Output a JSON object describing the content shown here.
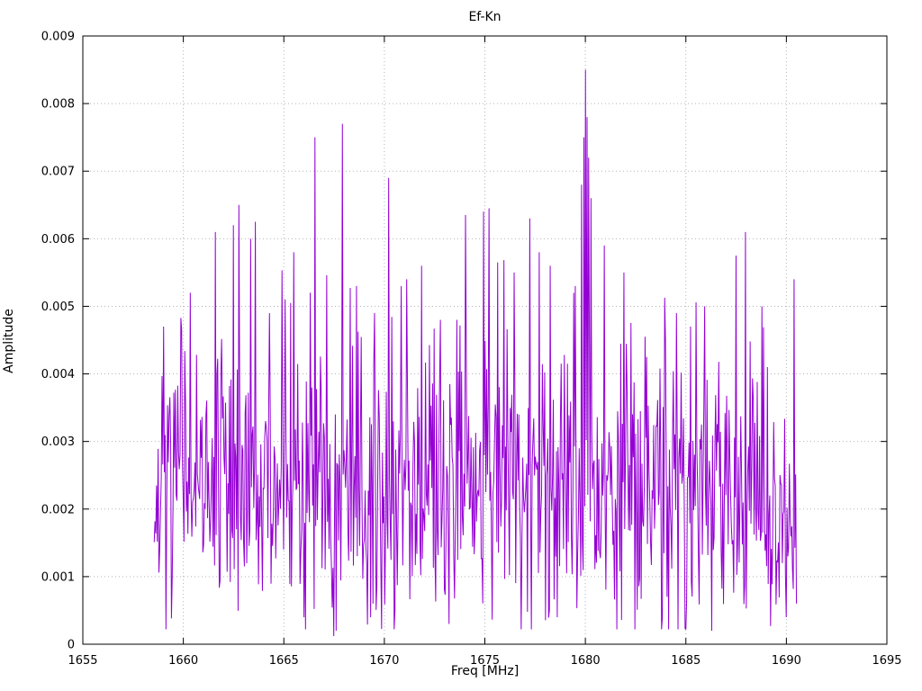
{
  "chart_data": {
    "type": "line",
    "title": "Ef-Kn",
    "xlabel": "Freq [MHz]",
    "ylabel": "Amplitude",
    "xlim": [
      1655,
      1695
    ],
    "ylim": [
      0,
      0.009
    ],
    "xticks": [
      1655,
      1660,
      1665,
      1670,
      1675,
      1680,
      1685,
      1690,
      1695
    ],
    "xtick_labels": [
      "1655",
      "1660",
      "1665",
      "1670",
      "1675",
      "1680",
      "1685",
      "1690",
      "1695"
    ],
    "yticks": [
      0,
      0.001,
      0.002,
      0.003,
      0.004,
      0.005,
      0.006,
      0.007,
      0.008,
      0.009
    ],
    "ytick_labels": [
      "0",
      "0.001",
      "0.002",
      "0.003",
      "0.004",
      "0.005",
      "0.006",
      "0.007",
      "0.008",
      "0.009"
    ],
    "grid": true,
    "grid_color": "#b4b4b4",
    "line_color": "#9400d3",
    "background": "#ffffff",
    "legend": "none",
    "series_x_range": [
      1658.55,
      1690.5
    ],
    "n_points": 820,
    "noise": {
      "base": 0.00235,
      "spread": 0.0011,
      "min": 0.00022,
      "spike_prob": 0.05,
      "spike_max": 0.0028,
      "seed": 7
    },
    "peaks": [
      [
        1659.0,
        0.0047
      ],
      [
        1659.9,
        0.00465
      ],
      [
        1660.35,
        0.0052
      ],
      [
        1661.6,
        0.0061
      ],
      [
        1662.5,
        0.0062
      ],
      [
        1662.75,
        0.0065
      ],
      [
        1663.35,
        0.006
      ],
      [
        1663.6,
        0.00625
      ],
      [
        1664.3,
        0.0049
      ],
      [
        1665.05,
        0.0051
      ],
      [
        1665.35,
        0.00505
      ],
      [
        1666.3,
        0.0052
      ],
      [
        1666.55,
        0.0075
      ],
      [
        1667.9,
        0.0077
      ],
      [
        1668.6,
        0.0053
      ],
      [
        1669.5,
        0.0049
      ],
      [
        1670.2,
        0.0069
      ],
      [
        1670.85,
        0.0053
      ],
      [
        1671.1,
        0.0054
      ],
      [
        1671.85,
        0.0056
      ],
      [
        1672.8,
        0.0048
      ],
      [
        1673.6,
        0.0048
      ],
      [
        1674.05,
        0.00635
      ],
      [
        1674.95,
        0.0064
      ],
      [
        1675.2,
        0.00645
      ],
      [
        1675.65,
        0.00565
      ],
      [
        1676.45,
        0.0055
      ],
      [
        1677.25,
        0.0063
      ],
      [
        1677.7,
        0.0058
      ],
      [
        1678.25,
        0.0056
      ],
      [
        1679.1,
        0.00415
      ],
      [
        1679.8,
        0.0068
      ],
      [
        1679.92,
        0.0075
      ],
      [
        1680.0,
        0.0085
      ],
      [
        1680.08,
        0.0078
      ],
      [
        1680.16,
        0.0072
      ],
      [
        1680.28,
        0.0066
      ],
      [
        1680.95,
        0.0059
      ],
      [
        1681.9,
        0.0055
      ],
      [
        1683.05,
        0.00425
      ],
      [
        1684.0,
        0.0045
      ],
      [
        1684.55,
        0.0049
      ],
      [
        1685.25,
        0.0047
      ],
      [
        1685.95,
        0.005
      ],
      [
        1687.5,
        0.00575
      ],
      [
        1687.95,
        0.0061
      ],
      [
        1688.8,
        0.005
      ],
      [
        1689.05,
        0.0041
      ],
      [
        1690.4,
        0.0054
      ]
    ],
    "dips": [
      [
        1666.0,
        0.0004
      ],
      [
        1667.5,
        0.00012
      ],
      [
        1667.62,
        0.0002
      ],
      [
        1669.3,
        0.0004
      ],
      [
        1673.2,
        0.0003
      ],
      [
        1678.6,
        0.0004
      ],
      [
        1686.3,
        0.0002
      ],
      [
        1690.0,
        0.0004
      ],
      [
        1690.5,
        0.0006
      ]
    ]
  }
}
